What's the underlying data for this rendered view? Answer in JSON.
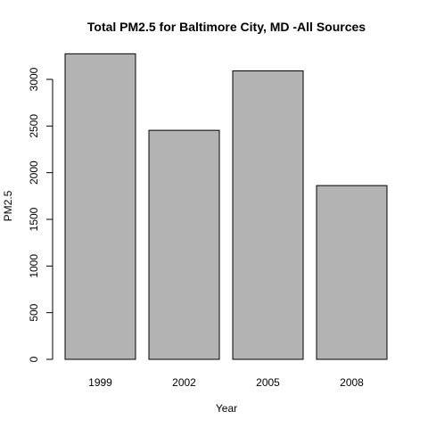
{
  "chart_data": {
    "type": "bar",
    "title": "Total PM2.5 for Baltimore City, MD -All Sources",
    "xlabel": "Year",
    "ylabel": "PM2.5",
    "categories": [
      "1999",
      "2002",
      "2005",
      "2008"
    ],
    "values": [
      3274,
      2454,
      3091,
      1862
    ],
    "ylim": [
      0,
      3300
    ],
    "yticks": [
      "0",
      "500",
      "1000",
      "1500",
      "2000",
      "2500",
      "3000"
    ],
    "bar_fill": "#b3b3b3",
    "bar_stroke": "#000000",
    "grid": false,
    "legend": "none"
  }
}
